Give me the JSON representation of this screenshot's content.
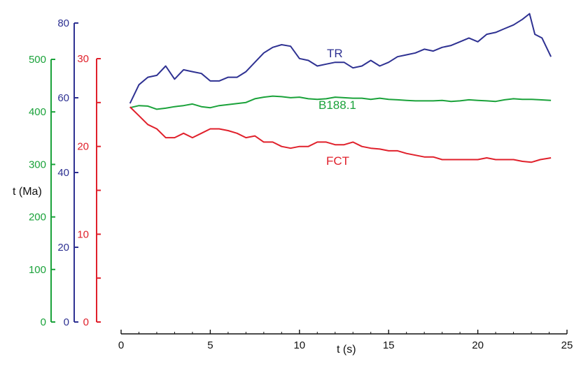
{
  "chart_data": {
    "type": "line",
    "xlabel": "t (s)",
    "ylabel": "t (Ma)",
    "x_ticks": [
      "0",
      "5",
      "10",
      "15",
      "20",
      "25"
    ],
    "xlim": [
      0,
      25
    ],
    "grid": false,
    "legend": "inline labels",
    "axes": [
      {
        "id": "green",
        "color": "#1aa23a",
        "ticks": [
          "0",
          "100",
          "200",
          "300",
          "400",
          "500"
        ],
        "ylim": [
          0,
          500
        ]
      },
      {
        "id": "blue",
        "color": "#2e3192",
        "ticks": [
          "0",
          "20",
          "40",
          "60",
          "80"
        ],
        "ylim": [
          0,
          80
        ]
      },
      {
        "id": "red",
        "color": "#e0202b",
        "ticks": [
          "0",
          "10",
          "20",
          "30"
        ],
        "ylim": [
          0,
          30
        ]
      }
    ],
    "series": [
      {
        "name": "TR",
        "axis": "blue",
        "color": "#2e3192",
        "x": [
          0.5,
          1,
          1.5,
          2,
          2.5,
          3,
          3.5,
          4,
          4.5,
          5,
          5.5,
          6,
          6.5,
          7,
          7.5,
          8,
          8.5,
          9,
          9.5,
          10,
          10.5,
          11,
          11.5,
          12,
          12.5,
          13,
          13.5,
          14,
          14.5,
          15,
          15.5,
          16,
          16.5,
          17,
          17.5,
          18,
          18.5,
          19,
          19.5,
          20,
          20.5,
          21,
          21.5,
          22,
          22.5,
          22.9,
          23.2,
          23.6,
          24.1
        ],
        "y": [
          58.5,
          63.5,
          65.5,
          66,
          68.5,
          65,
          67.5,
          67,
          66.5,
          64.5,
          64.5,
          65.5,
          65.5,
          67,
          69.5,
          72,
          73.5,
          74.2,
          73.8,
          70.5,
          70,
          68.5,
          69,
          69.5,
          69.5,
          68,
          68.5,
          70,
          68.5,
          69.5,
          71,
          71.5,
          72,
          73,
          72.5,
          73.5,
          74,
          75,
          76,
          75,
          77,
          77.5,
          78.5,
          79.5,
          81,
          82.5,
          77,
          76,
          71
        ]
      },
      {
        "name": "B188.1",
        "axis": "green",
        "color": "#1aa23a",
        "x": [
          0.5,
          1,
          1.5,
          2,
          2.5,
          3,
          3.5,
          4,
          4.5,
          5,
          5.5,
          6,
          6.5,
          7,
          7.5,
          8,
          8.5,
          9,
          9.5,
          10,
          10.5,
          11,
          11.5,
          12,
          12.5,
          13,
          13.5,
          14,
          14.5,
          15,
          15.5,
          16,
          16.5,
          17,
          17.5,
          18,
          18.5,
          19,
          19.5,
          20,
          20.5,
          21,
          21.5,
          22,
          22.5,
          23,
          23.5,
          24.1
        ],
        "y": [
          408,
          412,
          411,
          405,
          407,
          410,
          412,
          415,
          410,
          408,
          412,
          414,
          416,
          418,
          425,
          428,
          430,
          429,
          427,
          428,
          425,
          424,
          425,
          428,
          427,
          426,
          426,
          424,
          426,
          424,
          423,
          422,
          421,
          421,
          421,
          422,
          420,
          421,
          423,
          422,
          421,
          420,
          423,
          425,
          424,
          424,
          423,
          422
        ]
      },
      {
        "name": "FCT",
        "axis": "red",
        "color": "#e0202b",
        "x": [
          0.5,
          1,
          1.5,
          2,
          2.5,
          3,
          3.5,
          4,
          4.5,
          5,
          5.5,
          6,
          6.5,
          7,
          7.5,
          8,
          8.5,
          9,
          9.5,
          10,
          10.5,
          11,
          11.5,
          12,
          12.5,
          13,
          13.5,
          14,
          14.5,
          15,
          15.5,
          16,
          16.5,
          17,
          17.5,
          18,
          18.5,
          19,
          19.5,
          20,
          20.5,
          21,
          21.5,
          22,
          22.5,
          23,
          23.5,
          24.1
        ],
        "y": [
          24.5,
          23.5,
          22.5,
          22,
          21,
          21,
          21.5,
          21,
          21.5,
          22,
          22,
          21.8,
          21.5,
          21,
          21.2,
          20.5,
          20.5,
          20,
          19.8,
          20,
          20,
          20.5,
          20.5,
          20.2,
          20.2,
          20.5,
          20,
          19.8,
          19.7,
          19.5,
          19.5,
          19.2,
          19,
          18.8,
          18.8,
          18.5,
          18.5,
          18.5,
          18.5,
          18.5,
          18.7,
          18.5,
          18.5,
          18.5,
          18.3,
          18.2,
          18.5,
          18.7
        ]
      }
    ]
  }
}
